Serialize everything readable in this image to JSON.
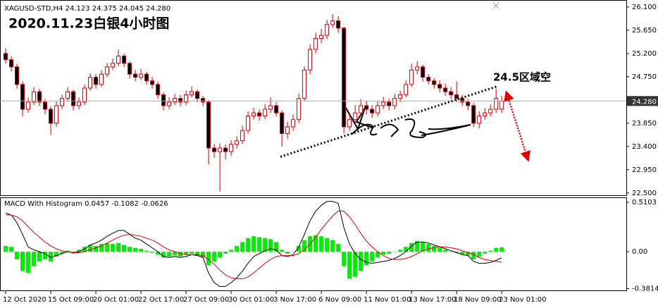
{
  "chart_data": [
    {
      "type": "candlestick",
      "title": "XAGUSD-STD,H4  24.123 24.375 24.045 24.280",
      "annotation": "2020.11.23白银4小时图",
      "target_label": "24.5区域空",
      "up_color": "#ffffff",
      "down_color": "#000000",
      "wick_color": "#cc0000",
      "xlim": [
        -1,
        110.1
      ],
      "ylim": [
        22.47,
        26.18
      ],
      "yticks": [
        {
          "value": 26.1,
          "label": "26.100"
        },
        {
          "value": 25.65,
          "label": "25.650"
        },
        {
          "value": 25.2,
          "label": "25.200"
        },
        {
          "value": 24.75,
          "label": "24.750"
        },
        {
          "value": 23.85,
          "label": "23.850"
        },
        {
          "value": 23.4,
          "label": "23.400"
        },
        {
          "value": 22.95,
          "label": "22.950"
        },
        {
          "value": 22.5,
          "label": "22.500"
        }
      ],
      "last_price": {
        "value": 24.28,
        "label": "24.280"
      },
      "trendline": {
        "x": [
          48.75,
          87.1
        ],
        "y": [
          23.2,
          24.56
        ]
      },
      "arrow": {
        "x": [
          89,
          92.5
        ],
        "y": [
          24.39,
          23.2
        ]
      },
      "ohlc": [
        [
          25.2,
          25.3,
          25.0,
          25.08
        ],
        [
          25.08,
          25.15,
          24.85,
          24.94
        ],
        [
          24.94,
          25.0,
          24.52,
          24.6
        ],
        [
          24.6,
          24.66,
          23.98,
          24.12
        ],
        [
          24.12,
          24.35,
          24.05,
          24.26
        ],
        [
          24.26,
          24.55,
          24.2,
          24.46
        ],
        [
          24.46,
          24.52,
          24.18,
          24.26
        ],
        [
          24.26,
          24.32,
          24.02,
          24.12
        ],
        [
          24.12,
          24.18,
          23.62,
          23.85
        ],
        [
          23.85,
          24.27,
          23.78,
          24.19
        ],
        [
          24.19,
          24.4,
          24.12,
          24.33
        ],
        [
          24.33,
          24.55,
          24.27,
          24.46
        ],
        [
          24.46,
          24.5,
          24.1,
          24.19
        ],
        [
          24.19,
          24.35,
          24.12,
          24.26
        ],
        [
          24.26,
          24.6,
          24.2,
          24.53
        ],
        [
          24.53,
          24.82,
          24.48,
          24.74
        ],
        [
          24.74,
          24.8,
          24.52,
          24.6
        ],
        [
          24.6,
          24.88,
          24.55,
          24.8
        ],
        [
          24.8,
          25.02,
          24.74,
          24.94
        ],
        [
          24.94,
          25.1,
          24.88,
          25.01
        ],
        [
          25.01,
          25.27,
          24.96,
          25.15
        ],
        [
          25.15,
          25.2,
          24.94,
          25.01
        ],
        [
          25.01,
          25.05,
          24.72,
          24.8
        ],
        [
          24.8,
          24.88,
          24.66,
          24.74
        ],
        [
          24.74,
          24.9,
          24.68,
          24.8
        ],
        [
          24.8,
          24.85,
          24.6,
          24.67
        ],
        [
          24.67,
          24.75,
          24.52,
          24.6
        ],
        [
          24.6,
          24.66,
          24.32,
          24.4
        ],
        [
          24.4,
          24.45,
          24.1,
          24.19
        ],
        [
          24.19,
          24.35,
          24.12,
          24.26
        ],
        [
          24.26,
          24.42,
          24.2,
          24.33
        ],
        [
          24.33,
          24.4,
          24.18,
          24.26
        ],
        [
          24.26,
          24.48,
          24.2,
          24.4
        ],
        [
          24.4,
          24.56,
          24.35,
          24.46
        ],
        [
          24.46,
          24.5,
          24.26,
          24.33
        ],
        [
          24.33,
          24.38,
          24.18,
          24.26
        ],
        [
          24.26,
          24.3,
          23.05,
          23.37
        ],
        [
          23.37,
          23.45,
          23.18,
          23.3
        ],
        [
          23.3,
          23.46,
          22.53,
          23.37
        ],
        [
          23.37,
          23.44,
          23.15,
          23.3
        ],
        [
          23.3,
          23.52,
          23.22,
          23.44
        ],
        [
          23.44,
          23.6,
          23.36,
          23.51
        ],
        [
          23.51,
          23.8,
          23.45,
          23.71
        ],
        [
          23.71,
          24.08,
          23.65,
          23.99
        ],
        [
          23.99,
          24.15,
          23.92,
          24.05
        ],
        [
          24.05,
          24.12,
          23.9,
          23.99
        ],
        [
          23.99,
          24.22,
          23.93,
          24.12
        ],
        [
          24.12,
          24.35,
          24.05,
          24.19
        ],
        [
          24.19,
          24.26,
          23.98,
          24.05
        ],
        [
          24.05,
          24.1,
          23.4,
          23.65
        ],
        [
          23.65,
          23.88,
          23.55,
          23.78
        ],
        [
          23.78,
          24.02,
          23.7,
          23.92
        ],
        [
          23.92,
          24.42,
          23.85,
          24.33
        ],
        [
          24.33,
          24.95,
          24.28,
          24.88
        ],
        [
          24.88,
          25.38,
          24.8,
          25.28
        ],
        [
          25.28,
          25.6,
          25.2,
          25.49
        ],
        [
          25.49,
          25.68,
          25.4,
          25.55
        ],
        [
          25.55,
          25.85,
          25.48,
          25.76
        ],
        [
          25.76,
          25.96,
          25.7,
          25.83
        ],
        [
          25.83,
          25.92,
          25.6,
          25.69
        ],
        [
          25.69,
          25.72,
          23.65,
          23.78
        ],
        [
          23.78,
          24.05,
          23.7,
          23.92
        ],
        [
          23.92,
          24.2,
          23.85,
          24.05
        ],
        [
          24.05,
          24.32,
          23.98,
          24.19
        ],
        [
          24.19,
          24.28,
          24.02,
          24.12
        ],
        [
          24.12,
          24.2,
          23.95,
          24.05
        ],
        [
          24.05,
          24.28,
          23.98,
          24.19
        ],
        [
          24.19,
          24.36,
          24.12,
          24.26
        ],
        [
          24.26,
          24.32,
          24.1,
          24.19
        ],
        [
          24.19,
          24.42,
          24.12,
          24.33
        ],
        [
          24.33,
          24.48,
          24.26,
          24.4
        ],
        [
          24.4,
          24.68,
          24.35,
          24.6
        ],
        [
          24.6,
          25.0,
          24.55,
          24.88
        ],
        [
          24.88,
          25.05,
          24.8,
          24.94
        ],
        [
          24.94,
          24.98,
          24.66,
          24.74
        ],
        [
          24.74,
          24.8,
          24.6,
          24.67
        ],
        [
          24.67,
          24.72,
          24.52,
          24.6
        ],
        [
          24.6,
          24.68,
          24.45,
          24.53
        ],
        [
          24.53,
          24.62,
          24.38,
          24.46
        ],
        [
          24.46,
          24.55,
          24.32,
          24.4
        ],
        [
          24.4,
          24.66,
          24.26,
          24.33
        ],
        [
          24.33,
          24.4,
          24.18,
          24.26
        ],
        [
          24.26,
          24.32,
          24.1,
          24.19
        ],
        [
          24.19,
          24.25,
          23.78,
          23.85
        ],
        [
          23.85,
          24.08,
          23.75,
          23.99
        ],
        [
          23.99,
          24.15,
          23.92,
          24.05
        ],
        [
          24.05,
          24.22,
          23.98,
          24.12
        ],
        [
          24.12,
          24.52,
          24.05,
          24.33
        ],
        [
          24.123,
          24.375,
          24.045,
          24.28
        ]
      ]
    },
    {
      "type": "macd",
      "title": "MACD With Histogram 0.0457 -0.1082 -0.0626",
      "xlim": [
        -1,
        110.1
      ],
      "ylim": [
        -0.4,
        0.555
      ],
      "yticks": [
        0.5103,
        {
          "value": 0,
          "label": "0.00"
        },
        -0.3814
      ],
      "xticks": [
        {
          "value": 0,
          "label": "12 Oct 2020"
        },
        {
          "value": 8,
          "label": "15 Oct 09:00"
        },
        {
          "value": 16,
          "label": "20 Oct 01:00"
        },
        {
          "value": 24,
          "label": "22 Oct 17:00"
        },
        {
          "value": 32,
          "label": "27 Oct 09:00"
        },
        {
          "value": 40,
          "label": "30 Oct 01:00"
        },
        {
          "value": 48,
          "label": "3 Nov 17:00"
        },
        {
          "value": 56,
          "label": "6 Nov 09:00"
        },
        {
          "value": 64,
          "label": "11 Nov 01:00"
        },
        {
          "value": 72,
          "label": "13 Nov 17:00"
        },
        {
          "value": 80,
          "label": "18 Nov 09:00"
        },
        {
          "value": 88,
          "label": "23 Nov 01:00"
        }
      ],
      "histogram": {
        "color": "#00ee00",
        "values": [
          0.06,
          0.05,
          -0.08,
          -0.2,
          -0.22,
          -0.15,
          -0.1,
          -0.08,
          -0.1,
          -0.05,
          -0.02,
          0.01,
          -0.02,
          0.02,
          0.05,
          0.07,
          0.06,
          0.08,
          0.09,
          0.08,
          0.09,
          0.07,
          0.05,
          0.04,
          0.03,
          0.01,
          -0.01,
          -0.03,
          -0.06,
          -0.05,
          -0.04,
          -0.05,
          -0.03,
          -0.02,
          -0.04,
          -0.06,
          -0.14,
          -0.1,
          -0.06,
          -0.02,
          0.02,
          0.06,
          0.1,
          0.14,
          0.16,
          0.15,
          0.14,
          0.13,
          0.1,
          0.02,
          -0.02,
          0.0,
          0.06,
          0.12,
          0.16,
          0.17,
          0.16,
          0.14,
          0.12,
          0.08,
          -0.15,
          -0.28,
          -0.26,
          -0.2,
          -0.14,
          -0.1,
          -0.06,
          -0.03,
          -0.02,
          0.0,
          0.02,
          0.05,
          0.09,
          0.11,
          0.1,
          0.08,
          0.06,
          0.04,
          0.02,
          0.0,
          -0.01,
          -0.03,
          -0.04,
          -0.08,
          -0.05,
          -0.02,
          0.01,
          0.04,
          0.0457
        ]
      },
      "series": [
        {
          "color": "#000000",
          "values": [
            0.4,
            0.38,
            0.3,
            0.18,
            0.05,
            0.02,
            0.0,
            -0.02,
            -0.06,
            -0.04,
            -0.02,
            0.0,
            -0.01,
            0.0,
            0.03,
            0.07,
            0.09,
            0.12,
            0.16,
            0.19,
            0.22,
            0.22,
            0.18,
            0.14,
            0.12,
            0.08,
            0.04,
            0.0,
            -0.05,
            -0.06,
            -0.05,
            -0.06,
            -0.05,
            -0.03,
            -0.04,
            -0.06,
            -0.22,
            -0.32,
            -0.36,
            -0.36,
            -0.32,
            -0.27,
            -0.2,
            -0.12,
            -0.05,
            -0.02,
            0.01,
            0.03,
            0.02,
            -0.04,
            -0.05,
            -0.03,
            0.05,
            0.18,
            0.32,
            0.42,
            0.48,
            0.52,
            0.52,
            0.5,
            0.25,
            0.08,
            -0.02,
            -0.08,
            -0.11,
            -0.12,
            -0.11,
            -0.1,
            -0.09,
            -0.07,
            -0.04,
            0.0,
            0.06,
            0.1,
            0.1,
            0.09,
            0.07,
            0.05,
            0.03,
            0.01,
            -0.01,
            -0.03,
            -0.04,
            -0.1,
            -0.12,
            -0.12,
            -0.11,
            -0.09,
            -0.0626
          ]
        },
        {
          "color": "#dd0000",
          "values": [
            0.38,
            0.38,
            0.36,
            0.32,
            0.26,
            0.2,
            0.15,
            0.1,
            0.06,
            0.03,
            0.01,
            0.0,
            -0.01,
            -0.01,
            0.0,
            0.02,
            0.04,
            0.06,
            0.09,
            0.12,
            0.15,
            0.17,
            0.18,
            0.17,
            0.16,
            0.14,
            0.12,
            0.09,
            0.05,
            0.02,
            0.0,
            -0.02,
            -0.03,
            -0.03,
            -0.03,
            -0.04,
            -0.08,
            -0.13,
            -0.19,
            -0.24,
            -0.27,
            -0.28,
            -0.28,
            -0.26,
            -0.22,
            -0.17,
            -0.12,
            -0.08,
            -0.05,
            -0.04,
            -0.04,
            -0.04,
            -0.02,
            0.02,
            0.08,
            0.15,
            0.23,
            0.3,
            0.37,
            0.42,
            0.42,
            0.36,
            0.28,
            0.19,
            0.11,
            0.05,
            0.0,
            -0.04,
            -0.07,
            -0.08,
            -0.08,
            -0.07,
            -0.05,
            -0.02,
            0.01,
            0.03,
            0.04,
            0.05,
            0.05,
            0.04,
            0.03,
            0.01,
            -0.01,
            -0.03,
            -0.06,
            -0.08,
            -0.09,
            -0.1,
            -0.1082
          ]
        }
      ]
    }
  ]
}
